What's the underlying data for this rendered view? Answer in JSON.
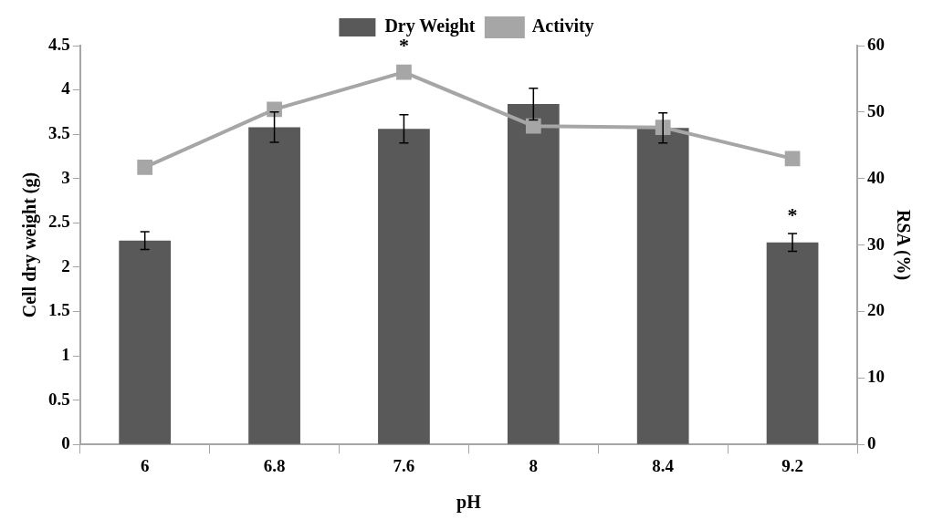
{
  "chart_data": {
    "type": "bar",
    "xlabel": "pH",
    "ylabel": "Cell dry weight (g)",
    "y2label": "RSA (%)",
    "categories": [
      "6",
      "6.8",
      "7.6",
      "8",
      "8.4",
      "9.2"
    ],
    "series": [
      {
        "name": "Dry Weight",
        "color": "#595959",
        "values": [
          2.3,
          3.58,
          3.56,
          3.84,
          3.57,
          2.28
        ],
        "errors": [
          0.1,
          0.17,
          0.16,
          0.18,
          0.17,
          0.1
        ]
      },
      {
        "name": "Activity",
        "type": "line",
        "axis": "y2",
        "color": "#a6a6a6",
        "values": [
          41.7,
          50.4,
          56,
          47.9,
          47.7,
          43
        ]
      }
    ],
    "ylim": [
      0,
      4.5
    ],
    "yticks": [
      0,
      0.5,
      1,
      1.5,
      2,
      2.5,
      3,
      3.5,
      4,
      4.5
    ],
    "y2lim": [
      0,
      60
    ],
    "y2ticks": [
      0,
      10,
      20,
      30,
      40,
      50,
      60
    ],
    "legend": "top",
    "marker": "square",
    "annotations": [
      {
        "text": "*",
        "x": "7.6",
        "y": 4.2
      },
      {
        "text": "*",
        "x": "9.2",
        "y": 2.28
      }
    ]
  }
}
